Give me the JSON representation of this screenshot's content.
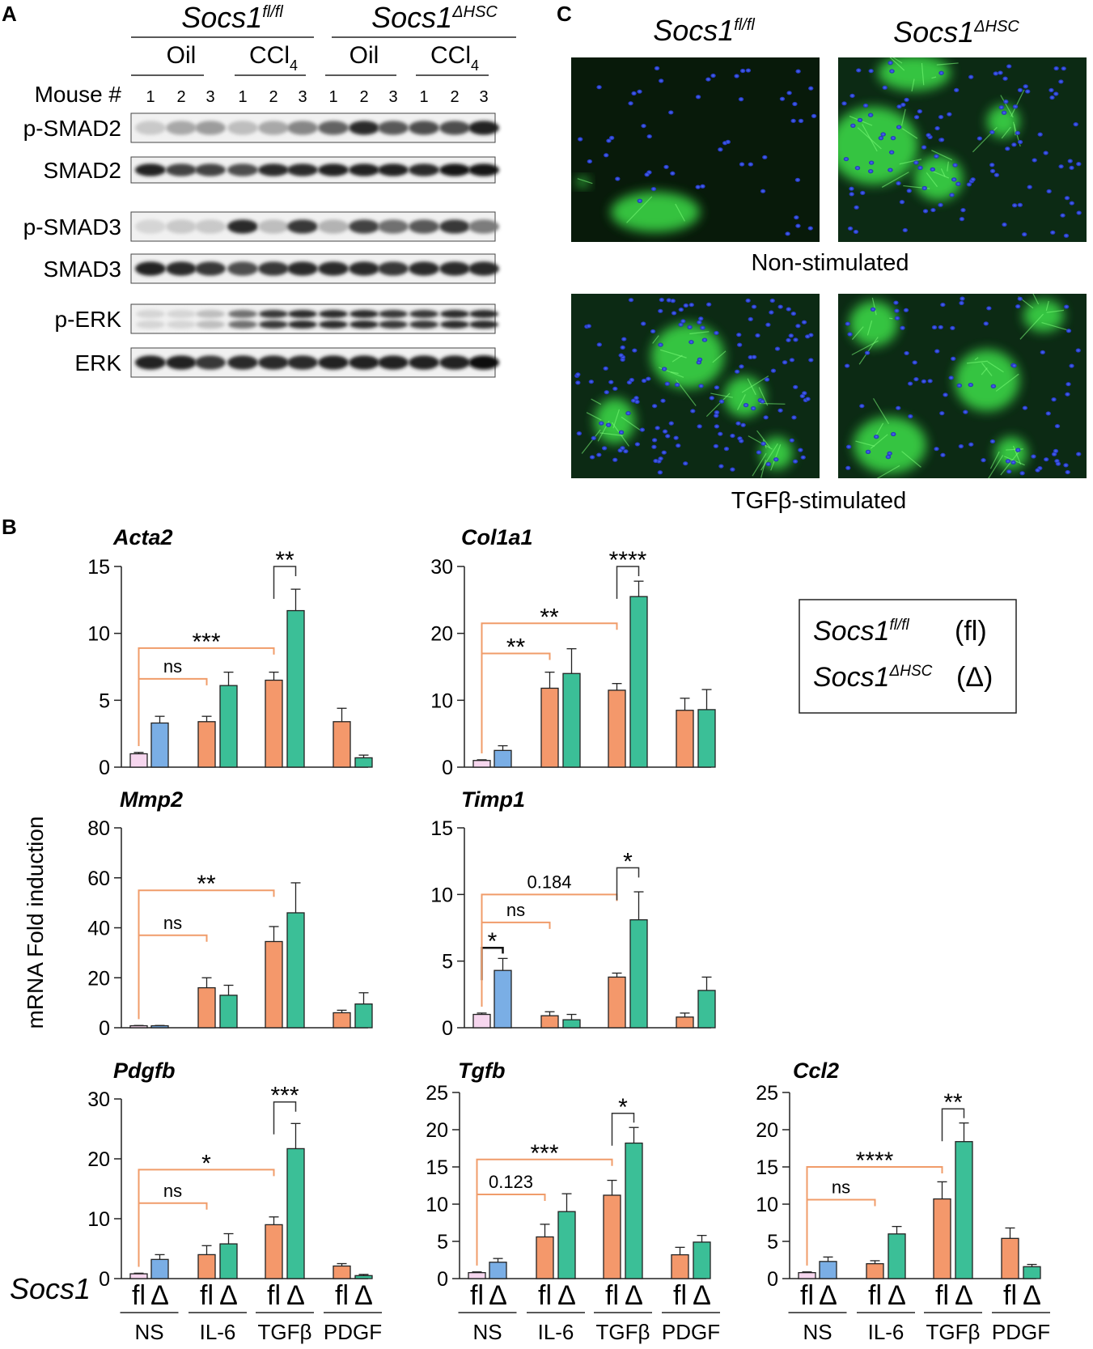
{
  "panel_labels": [
    "A",
    "B",
    "C"
  ],
  "blot": {
    "genotype_labels": [
      {
        "base": "Socs1",
        "sup": "fl/fl"
      },
      {
        "base": "Socs1",
        "sup": "ΔHSC"
      }
    ],
    "treatments": [
      {
        "base": "Oil",
        "sub": ""
      },
      {
        "base": "CCl",
        "sub": "4"
      },
      {
        "base": "Oil",
        "sub": ""
      },
      {
        "base": "CCl",
        "sub": "4"
      }
    ],
    "mouse_label": "Mouse #",
    "mouse_numbers": [
      "1",
      "2",
      "3",
      "1",
      "2",
      "3",
      "1",
      "2",
      "3",
      "1",
      "2",
      "3"
    ],
    "rows": [
      {
        "label": "p-SMAD2",
        "intensity": [
          0.15,
          0.3,
          0.35,
          0.2,
          0.3,
          0.45,
          0.6,
          0.85,
          0.65,
          0.7,
          0.7,
          0.9
        ]
      },
      {
        "label": "SMAD2",
        "intensity": [
          0.9,
          0.75,
          0.75,
          0.7,
          0.85,
          0.85,
          0.9,
          0.9,
          0.9,
          0.85,
          0.95,
          0.95
        ]
      },
      {
        "label": "p-SMAD3",
        "intensity": [
          0.1,
          0.15,
          0.15,
          0.85,
          0.2,
          0.8,
          0.25,
          0.75,
          0.55,
          0.65,
          0.8,
          0.5
        ]
      },
      {
        "label": "SMAD3",
        "intensity": [
          0.9,
          0.85,
          0.8,
          0.7,
          0.8,
          0.85,
          0.85,
          0.85,
          0.8,
          0.85,
          0.85,
          0.85
        ]
      },
      {
        "label": "p-ERK",
        "intensity": [
          0.1,
          0.1,
          0.2,
          0.55,
          0.8,
          0.85,
          0.85,
          0.85,
          0.8,
          0.8,
          0.85,
          0.85
        ]
      },
      {
        "label": "ERK",
        "intensity": [
          0.9,
          0.9,
          0.8,
          0.85,
          0.85,
          0.85,
          0.9,
          0.9,
          0.9,
          0.9,
          0.9,
          1.0
        ]
      }
    ]
  },
  "micrographs": {
    "column_labels": [
      {
        "base": "Socs1",
        "sup": "fl/fl"
      },
      {
        "base": "Socs1",
        "sup": "ΔHSC"
      }
    ],
    "row_labels": [
      "Non-stimulated",
      "TGFβ-stimulated"
    ]
  },
  "legend": {
    "entries": [
      {
        "base": "Socs1",
        "sup": "fl/fl",
        "abbr": "(fl)"
      },
      {
        "base": "Socs1",
        "sup": "ΔHSC",
        "abbr": "(Δ)"
      }
    ]
  },
  "ylabel_shared": "mRNA Fold induction",
  "x_axis": {
    "row_label": "Socs1",
    "bar_labels": [
      "fl",
      "Δ",
      "fl",
      "Δ",
      "fl",
      "Δ",
      "fl",
      "Δ"
    ],
    "group_labels": [
      "NS",
      "IL-6",
      "TGFβ",
      "PDGF"
    ]
  },
  "colors": {
    "fl_NS": "#f6d6ee",
    "delta_NS": "#7aaee5",
    "fl_stim": "#f4986b",
    "delta_stim": "#3bbf97",
    "comparison_line": "#f09c6a",
    "bracket": "#333333"
  },
  "chart_data": [
    {
      "type": "bar",
      "title": "Acta2",
      "ylim": [
        0,
        15
      ],
      "yticks": [
        0,
        5,
        10,
        15
      ],
      "categories": [
        "NS fl",
        "NS Δ",
        "IL-6 fl",
        "IL-6 Δ",
        "TGFβ fl",
        "TGFβ Δ",
        "PDGF fl",
        "PDGF Δ"
      ],
      "values": [
        1.0,
        3.3,
        3.4,
        6.1,
        6.5,
        11.7,
        3.4,
        0.7
      ],
      "errors": [
        0.1,
        0.5,
        0.4,
        1.0,
        0.6,
        1.6,
        1.0,
        0.2
      ],
      "comparisons": [
        {
          "kind": "line",
          "from": 0,
          "to": 2,
          "y": 6.6,
          "label": "ns"
        },
        {
          "kind": "line",
          "from": 0,
          "to": 4,
          "y": 8.9,
          "label": "***"
        },
        {
          "kind": "bracket",
          "from": 4,
          "to": 5,
          "y": 15.0,
          "label": "**"
        }
      ]
    },
    {
      "type": "bar",
      "title": "Col1a1",
      "ylim": [
        0,
        30
      ],
      "yticks": [
        0,
        10,
        20,
        30
      ],
      "categories": [
        "NS fl",
        "NS Δ",
        "IL-6 fl",
        "IL-6 Δ",
        "TGFβ fl",
        "TGFβ Δ",
        "PDGF fl",
        "PDGF Δ"
      ],
      "values": [
        1.0,
        2.5,
        11.8,
        14.0,
        11.5,
        25.5,
        8.5,
        8.6
      ],
      "errors": [
        0.1,
        0.7,
        2.4,
        3.7,
        1.0,
        2.3,
        1.8,
        3.0
      ],
      "comparisons": [
        {
          "kind": "line",
          "from": 0,
          "to": 2,
          "y": 17.0,
          "label": "**"
        },
        {
          "kind": "line",
          "from": 0,
          "to": 4,
          "y": 21.5,
          "label": "**"
        },
        {
          "kind": "bracket",
          "from": 4,
          "to": 5,
          "y": 30.0,
          "label": "****"
        }
      ]
    },
    {
      "type": "bar",
      "title": "Mmp2",
      "ylim": [
        0,
        80
      ],
      "yticks": [
        0,
        20,
        40,
        60,
        80
      ],
      "categories": [
        "NS fl",
        "NS Δ",
        "IL-6 fl",
        "IL-6 Δ",
        "TGFβ fl",
        "TGFβ Δ",
        "PDGF fl",
        "PDGF Δ"
      ],
      "values": [
        0.8,
        0.8,
        16.0,
        13.0,
        34.5,
        46.0,
        6.0,
        9.5
      ],
      "errors": [
        0.1,
        0.1,
        4.0,
        4.0,
        6.0,
        12.0,
        1.0,
        4.5
      ],
      "comparisons": [
        {
          "kind": "line",
          "from": 0,
          "to": 2,
          "y": 37.0,
          "label": "ns"
        },
        {
          "kind": "line",
          "from": 0,
          "to": 4,
          "y": 55.0,
          "label": "**"
        }
      ]
    },
    {
      "type": "bar",
      "title": "Timp1",
      "ylim": [
        0,
        15
      ],
      "yticks": [
        0,
        5,
        10,
        15
      ],
      "categories": [
        "NS fl",
        "NS Δ",
        "IL-6 fl",
        "IL-6 Δ",
        "TGFβ fl",
        "TGFβ Δ",
        "PDGF fl",
        "PDGF Δ"
      ],
      "values": [
        1.0,
        4.3,
        0.9,
        0.6,
        3.8,
        8.1,
        0.8,
        2.8
      ],
      "errors": [
        0.1,
        0.9,
        0.3,
        0.4,
        0.3,
        2.1,
        0.3,
        1.0
      ],
      "comparisons": [
        {
          "kind": "bracket",
          "from": 0,
          "to": 1,
          "y": 6.0,
          "label": "*"
        },
        {
          "kind": "line",
          "from": 0,
          "to": 2,
          "y": 7.9,
          "label": "ns"
        },
        {
          "kind": "line",
          "from": 0,
          "to": 4,
          "y": 10.0,
          "label": "0.184"
        },
        {
          "kind": "bracket",
          "from": 4,
          "to": 5,
          "y": 12.0,
          "label": "*"
        }
      ]
    },
    {
      "type": "bar",
      "title": "Pdgfb",
      "ylim": [
        0,
        30
      ],
      "yticks": [
        0,
        10,
        20,
        30
      ],
      "categories": [
        "NS fl",
        "NS Δ",
        "IL-6 fl",
        "IL-6 Δ",
        "TGFβ fl",
        "TGFβ Δ",
        "PDGF fl",
        "PDGF Δ"
      ],
      "values": [
        0.8,
        3.2,
        4.0,
        5.8,
        9.0,
        21.7,
        2.1,
        0.5
      ],
      "errors": [
        0.1,
        0.8,
        1.5,
        1.7,
        1.3,
        4.2,
        0.4,
        0.2
      ],
      "comparisons": [
        {
          "kind": "line",
          "from": 0,
          "to": 2,
          "y": 12.6,
          "label": "ns"
        },
        {
          "kind": "line",
          "from": 0,
          "to": 4,
          "y": 18.2,
          "label": "*"
        },
        {
          "kind": "bracket",
          "from": 4,
          "to": 5,
          "y": 29.5,
          "label": "***"
        }
      ]
    },
    {
      "type": "bar",
      "title": "Tgfb",
      "ylim": [
        0,
        25
      ],
      "yticks": [
        0,
        5,
        10,
        15,
        20,
        25
      ],
      "categories": [
        "NS fl",
        "NS Δ",
        "IL-6 fl",
        "IL-6 Δ",
        "TGFβ fl",
        "TGFβ Δ",
        "PDGF fl",
        "PDGF Δ"
      ],
      "values": [
        0.8,
        2.2,
        5.6,
        9.0,
        11.2,
        18.2,
        3.2,
        4.9
      ],
      "errors": [
        0.1,
        0.5,
        1.7,
        2.4,
        2.0,
        2.1,
        1.0,
        0.9
      ],
      "comparisons": [
        {
          "kind": "line",
          "from": 0,
          "to": 2,
          "y": 11.3,
          "label": "0.123"
        },
        {
          "kind": "line",
          "from": 0,
          "to": 4,
          "y": 16.0,
          "label": "***"
        },
        {
          "kind": "bracket",
          "from": 4,
          "to": 5,
          "y": 22.2,
          "label": "*"
        }
      ]
    },
    {
      "type": "bar",
      "title": "Ccl2",
      "ylim": [
        0,
        25
      ],
      "yticks": [
        0,
        5,
        10,
        15,
        20,
        25
      ],
      "categories": [
        "NS fl",
        "NS Δ",
        "IL-6 fl",
        "IL-6 Δ",
        "TGFβ fl",
        "TGFβ Δ",
        "PDGF fl",
        "PDGF Δ"
      ],
      "values": [
        0.8,
        2.3,
        2.0,
        6.0,
        10.7,
        18.4,
        5.4,
        1.6
      ],
      "errors": [
        0.1,
        0.6,
        0.4,
        1.0,
        2.3,
        2.5,
        1.4,
        0.3
      ],
      "comparisons": [
        {
          "kind": "line",
          "from": 0,
          "to": 2,
          "y": 10.6,
          "label": "ns"
        },
        {
          "kind": "line",
          "from": 0,
          "to": 4,
          "y": 15.0,
          "label": "****"
        },
        {
          "kind": "bracket",
          "from": 4,
          "to": 5,
          "y": 22.8,
          "label": "**"
        }
      ]
    }
  ]
}
